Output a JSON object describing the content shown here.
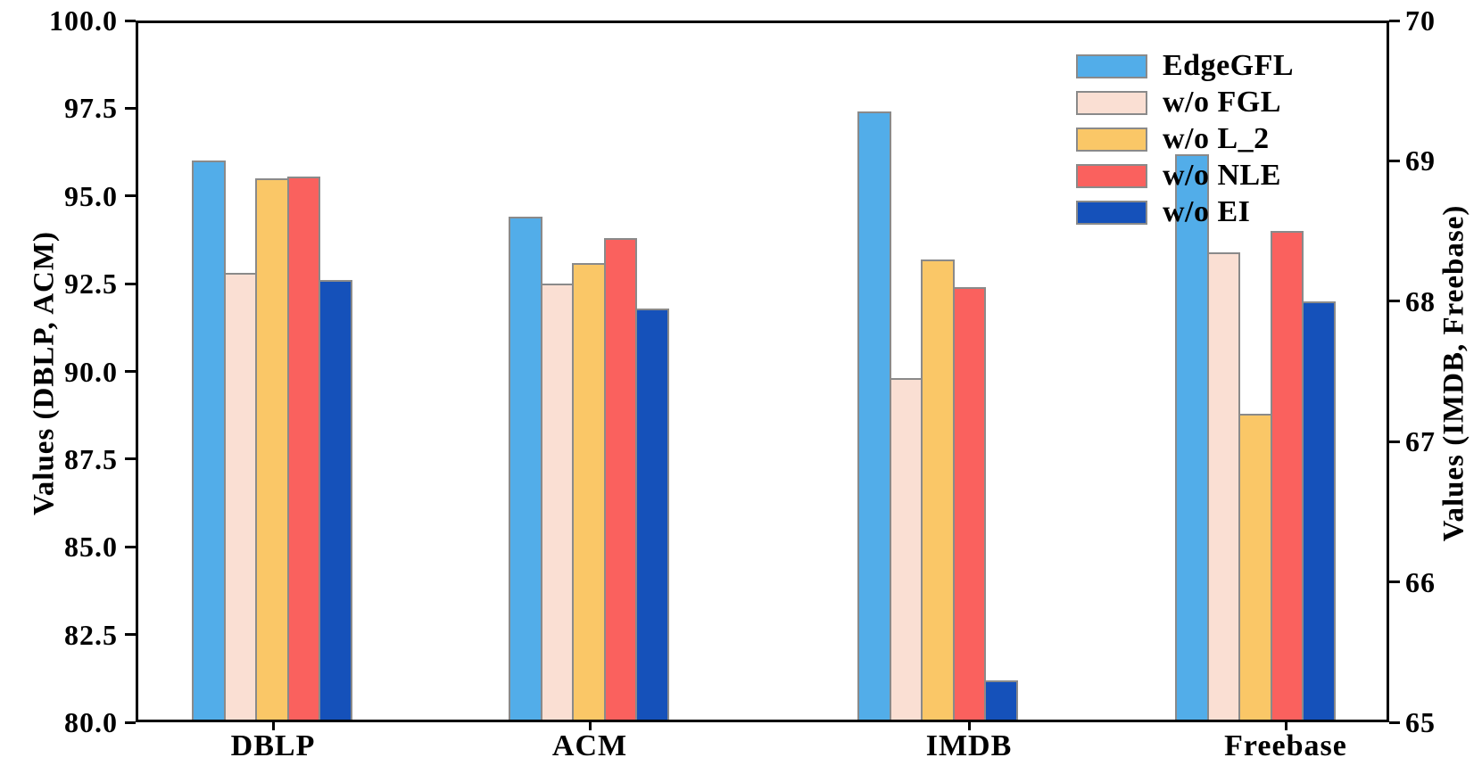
{
  "chart_data": {
    "type": "bar",
    "categories": [
      "DBLP",
      "ACM",
      "IMDB",
      "Freebase"
    ],
    "category_axis": [
      "left",
      "left",
      "right",
      "right"
    ],
    "series": [
      {
        "name": "EdgeGFL",
        "color": "#52ADE9",
        "values": [
          96.0,
          94.4,
          69.35,
          69.05
        ]
      },
      {
        "name": "w/o FGL",
        "color": "#FADFD3",
        "values": [
          92.8,
          92.5,
          67.45,
          68.35
        ]
      },
      {
        "name": "w/o L_2",
        "color": "#FAC767",
        "values": [
          95.5,
          93.1,
          68.3,
          67.2
        ]
      },
      {
        "name": "w/o NLE",
        "color": "#FA615E",
        "values": [
          95.55,
          93.8,
          68.1,
          68.5
        ]
      },
      {
        "name": "w/o EI",
        "color": "#1551BA",
        "values": [
          92.6,
          91.8,
          65.3,
          68.0
        ]
      }
    ],
    "left_axis": {
      "title": "Values (DBLP, ACM)",
      "min": 80,
      "max": 100,
      "tick_values": [
        100,
        97.5,
        95,
        92.5,
        90,
        87.5,
        85,
        82.5,
        80
      ],
      "tick_labels": [
        "100.0",
        "97.5",
        "95.0",
        "92.5",
        "90.0",
        "87.5",
        "85.0",
        "82.5",
        "80.0"
      ]
    },
    "right_axis": {
      "title": "Values (IMDB, Freebase)",
      "min": 65,
      "max": 70,
      "tick_values": [
        70,
        69,
        68,
        67,
        66,
        65
      ],
      "tick_labels": [
        "70",
        "69",
        "68",
        "67",
        "66",
        "65"
      ]
    },
    "legend": {
      "position": "upper-right",
      "frame": false,
      "entries": [
        "EdgeGFL",
        "w/o FGL",
        "w/o L_2",
        "w/o NLE",
        "w/o EI"
      ]
    },
    "style": {
      "bar_edge_color": "#8A8A8A",
      "spine_color": "#000000",
      "background": "#FFFFFF",
      "grid": false
    }
  }
}
